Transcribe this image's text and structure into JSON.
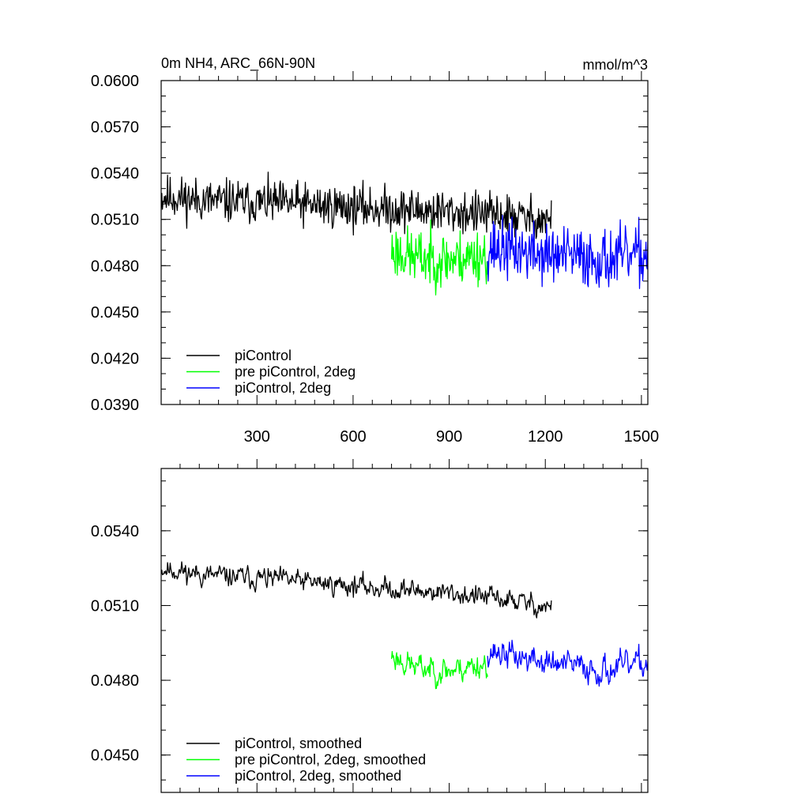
{
  "chart_data": [
    {
      "type": "line",
      "title": "0m NH4, ARC_66N-90N",
      "units": "mmol/m^3",
      "xlim": [
        1,
        1520
      ],
      "ylim": [
        0.039,
        0.06
      ],
      "y_ticks": [
        "0.0390",
        "0.0420",
        "0.0450",
        "0.0480",
        "0.0510",
        "0.0540",
        "0.0570",
        "0.0600"
      ],
      "x_ticks": [
        "300",
        "600",
        "900",
        "1200",
        "1500"
      ],
      "legend_position": "bottom-left",
      "series": [
        {
          "name": "piControl",
          "color": "#000000",
          "x_start": 1,
          "x_end": 1220,
          "mean": [
            [
              1,
              0.0525
            ],
            [
              150,
              0.0522
            ],
            [
              300,
              0.0521
            ],
            [
              500,
              0.0519
            ],
            [
              700,
              0.0517
            ],
            [
              900,
              0.0515
            ],
            [
              1100,
              0.0512
            ],
            [
              1220,
              0.0509
            ]
          ],
          "amplitude": 0.0021,
          "seed": 11
        },
        {
          "name": "pre piControl, 2deg",
          "color": "#00ff00",
          "x_start": 720,
          "x_end": 1020,
          "mean": [
            [
              720,
              0.049
            ],
            [
              800,
              0.0485
            ],
            [
              900,
              0.0484
            ],
            [
              1020,
              0.0487
            ]
          ],
          "amplitude": 0.0027,
          "seed": 23
        },
        {
          "name": "piControl, 2deg",
          "color": "#0000ff",
          "x_start": 1020,
          "x_end": 1520,
          "mean": [
            [
              1020,
              0.0492
            ],
            [
              1200,
              0.0487
            ],
            [
              1400,
              0.0484
            ],
            [
              1520,
              0.0487
            ]
          ],
          "amplitude": 0.0029,
          "seed": 37
        }
      ]
    },
    {
      "type": "line",
      "xlim": [
        1,
        1520
      ],
      "ylim": [
        0.0435,
        0.0565
      ],
      "y_ticks": [
        "0.0450",
        "0.0480",
        "0.0510",
        "0.0540"
      ],
      "legend_position": "bottom-left",
      "series": [
        {
          "name": "piControl, smoothed",
          "color": "#000000",
          "x_start": 1,
          "x_end": 1220,
          "mean": [
            [
              1,
              0.0525
            ],
            [
              150,
              0.0522
            ],
            [
              300,
              0.0521
            ],
            [
              500,
              0.0519
            ],
            [
              700,
              0.0517
            ],
            [
              900,
              0.0515
            ],
            [
              1100,
              0.0512
            ],
            [
              1220,
              0.0509
            ]
          ],
          "amplitude": 0.0012,
          "seed": 11
        },
        {
          "name": "pre piControl, 2deg, smoothed",
          "color": "#00ff00",
          "x_start": 720,
          "x_end": 1020,
          "mean": [
            [
              720,
              0.049
            ],
            [
              800,
              0.0485
            ],
            [
              900,
              0.0484
            ],
            [
              1020,
              0.0487
            ]
          ],
          "amplitude": 0.0015,
          "seed": 23
        },
        {
          "name": "piControl, 2deg, smoothed",
          "color": "#0000ff",
          "x_start": 1020,
          "x_end": 1520,
          "mean": [
            [
              1020,
              0.0492
            ],
            [
              1200,
              0.0487
            ],
            [
              1400,
              0.0484
            ],
            [
              1520,
              0.0487
            ]
          ],
          "amplitude": 0.0016,
          "seed": 37
        }
      ]
    }
  ]
}
